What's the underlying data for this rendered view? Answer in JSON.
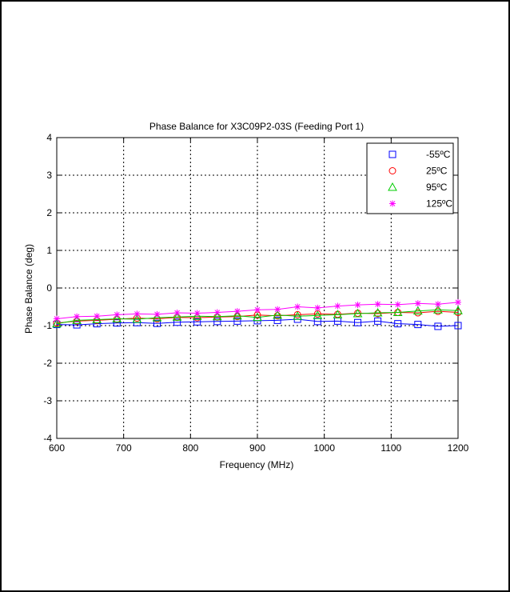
{
  "chart_data": {
    "type": "line",
    "title": "Phase Balance for X3C09P2-03S (Feeding Port 1)",
    "xlabel": "Frequency (MHz)",
    "ylabel": "Phase Balance (deg)",
    "xlim": [
      600,
      1200
    ],
    "ylim": [
      -4,
      4
    ],
    "xticks": [
      600,
      700,
      800,
      900,
      1000,
      1100,
      1200
    ],
    "yticks": [
      -4,
      -3,
      -2,
      -1,
      0,
      1,
      2,
      3,
      4
    ],
    "x_tick_labels": [
      "600",
      "700",
      "800",
      "900",
      "1000",
      "1100",
      "1200"
    ],
    "y_tick_labels": [
      "-4",
      "-3",
      "-2",
      "-1",
      "0",
      "1",
      "2",
      "3",
      "4"
    ],
    "grid": true,
    "legend_position": "top-right",
    "x": [
      600,
      630,
      660,
      690,
      720,
      750,
      780,
      810,
      840,
      870,
      900,
      930,
      960,
      990,
      1020,
      1050,
      1080,
      1110,
      1140,
      1170,
      1200
    ],
    "series": [
      {
        "name": "-55ºC",
        "marker": "square",
        "color": "#0000ff",
        "values": [
          -0.97,
          -0.98,
          -0.95,
          -0.93,
          -0.92,
          -0.94,
          -0.91,
          -0.9,
          -0.89,
          -0.88,
          -0.87,
          -0.86,
          -0.83,
          -0.89,
          -0.88,
          -0.92,
          -0.88,
          -0.95,
          -0.97,
          -1.02,
          -1.0
        ]
      },
      {
        "name": "25ºC",
        "marker": "circle",
        "color": "#ff0000",
        "values": [
          -0.93,
          -0.88,
          -0.86,
          -0.83,
          -0.8,
          -0.82,
          -0.78,
          -0.79,
          -0.77,
          -0.76,
          -0.72,
          -0.74,
          -0.71,
          -0.69,
          -0.7,
          -0.67,
          -0.68,
          -0.65,
          -0.66,
          -0.62,
          -0.65
        ]
      },
      {
        "name": "95ºC",
        "marker": "triangle",
        "color": "#00cc00",
        "values": [
          -0.95,
          -0.86,
          -0.84,
          -0.82,
          -0.83,
          -0.79,
          -0.77,
          -0.75,
          -0.76,
          -0.74,
          -0.78,
          -0.72,
          -0.75,
          -0.73,
          -0.71,
          -0.68,
          -0.66,
          -0.65,
          -0.61,
          -0.58,
          -0.6
        ]
      },
      {
        "name": "125ºC",
        "marker": "star",
        "color": "#ff00ff",
        "values": [
          -0.82,
          -0.76,
          -0.75,
          -0.71,
          -0.69,
          -0.7,
          -0.66,
          -0.67,
          -0.65,
          -0.62,
          -0.58,
          -0.57,
          -0.5,
          -0.53,
          -0.48,
          -0.45,
          -0.43,
          -0.44,
          -0.41,
          -0.43,
          -0.38
        ]
      }
    ]
  }
}
